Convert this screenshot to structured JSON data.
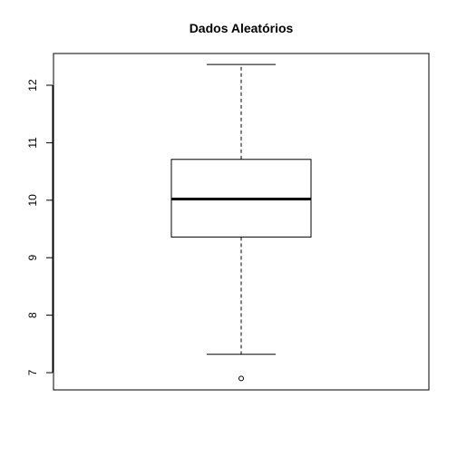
{
  "chart_data": {
    "type": "boxplot",
    "title": "Dados Aleatórios",
    "xlabel": "",
    "ylabel": "",
    "ylim": [
      6.7,
      12.6
    ],
    "yticks": [
      7,
      8,
      9,
      10,
      11,
      12
    ],
    "ytick_labels": [
      "7",
      "8",
      "9",
      "10",
      "11",
      "12"
    ],
    "box": {
      "whisker_low": 7.32,
      "q1": 9.36,
      "median": 10.02,
      "q3": 10.71,
      "whisker_high": 12.36
    },
    "outliers": [
      6.9
    ],
    "grid": false
  }
}
